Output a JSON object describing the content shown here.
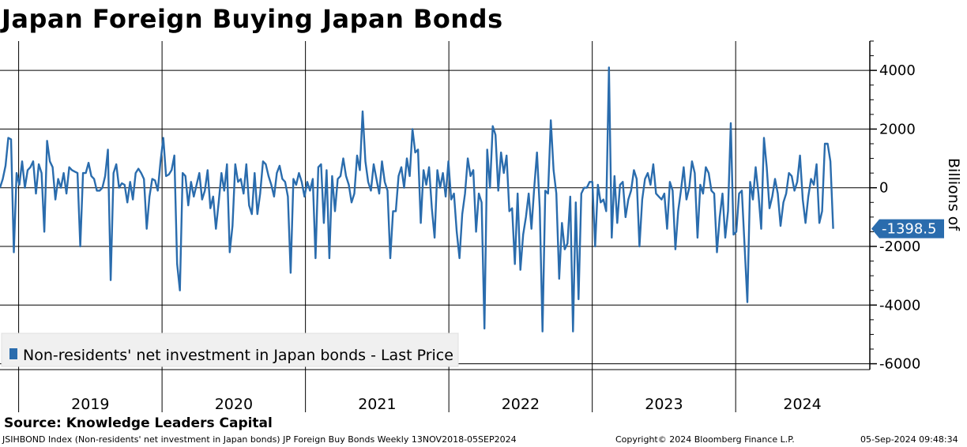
{
  "chart_data": {
    "type": "line",
    "title": "Japan Foreign Buying Japan Bonds",
    "ylabel": "Billions of",
    "ylim": [
      -6200,
      5000
    ],
    "yticks": [
      -6000,
      -4000,
      -2000,
      0,
      2000,
      4000
    ],
    "xlim": [
      2018.87,
      2024.93
    ],
    "x_periods": [
      "2019",
      "2020",
      "2021",
      "2022",
      "2023",
      "2024"
    ],
    "grid": true,
    "series": [
      {
        "name": "Non-residents' net investment in Japan bonds - Last Price",
        "color": "#2a6cad",
        "last_value_label": "-1398.5",
        "x_start": 2018.87,
        "x_end": 2024.68,
        "values": [
          0,
          300,
          750,
          1700,
          1650,
          -2200,
          500,
          100,
          900,
          0,
          600,
          700,
          900,
          -200,
          800,
          500,
          -1500,
          1600,
          900,
          700,
          -400,
          300,
          0,
          500,
          -200,
          700,
          600,
          550,
          500,
          -2000,
          500,
          500,
          850,
          400,
          300,
          -100,
          -100,
          0,
          400,
          1300,
          -3150,
          500,
          800,
          0,
          150,
          100,
          -500,
          200,
          -400,
          500,
          650,
          500,
          300,
          -1400,
          -300,
          300,
          250,
          -100,
          900,
          1700,
          400,
          450,
          600,
          1100,
          -2600,
          -3500,
          500,
          400,
          -600,
          200,
          -300,
          100,
          500,
          -400,
          -100,
          600,
          -700,
          -300,
          -1400,
          -500,
          500,
          -100,
          800,
          -2200,
          -1300,
          800,
          200,
          300,
          -200,
          800,
          -600,
          -900,
          500,
          -900,
          -200,
          900,
          800,
          400,
          100,
          -300,
          500,
          750,
          300,
          200,
          -300,
          -2900,
          300,
          100,
          500,
          200,
          -300,
          200,
          -100,
          300,
          -2400,
          700,
          800,
          -1200,
          600,
          -2400,
          400,
          -800,
          300,
          400,
          1000,
          400,
          100,
          -500,
          -200,
          1100,
          600,
          2600,
          900,
          200,
          -100,
          800,
          300,
          -200,
          900,
          200,
          -100,
          -2400,
          -800,
          -800,
          400,
          700,
          0,
          1000,
          400,
          2000,
          1200,
          1300,
          -1200,
          600,
          100,
          700,
          -700,
          -1700,
          600,
          0,
          500,
          -300,
          900,
          -400,
          -200,
          -1500,
          -2400,
          -900,
          -200,
          1000,
          400,
          600,
          -1500,
          -200,
          -500,
          -4800,
          1300,
          0,
          2100,
          1800,
          -100,
          1200,
          500,
          1100,
          -800,
          -700,
          -2600,
          -200,
          -2800,
          -1600,
          -1000,
          -200,
          -1400,
          0,
          1200,
          -700,
          -4900,
          -100,
          -200,
          2300,
          600,
          -200,
          -3100,
          -1200,
          -2100,
          -1900,
          -300,
          -4900,
          -500,
          -3800,
          -200,
          0,
          0,
          200,
          200,
          -2000,
          100,
          -500,
          -400,
          -800,
          4100,
          -1700,
          400,
          -1200,
          100,
          200,
          -1000,
          -400,
          -100,
          600,
          300,
          -2000,
          -400,
          300,
          500,
          100,
          800,
          -200,
          -300,
          -400,
          -200,
          -1400,
          200,
          -100,
          -2100,
          -800,
          -100,
          700,
          -400,
          0,
          900,
          500,
          -1700,
          100,
          -200,
          700,
          500,
          -100,
          -200,
          -2200,
          -1000,
          -200,
          -1700,
          -800,
          2200,
          -1600,
          -1500,
          -200,
          -100,
          -2000,
          -3900,
          200,
          -400,
          700,
          -200,
          -1400,
          1700,
          700,
          -700,
          -300,
          300,
          -200,
          -1300,
          -500,
          -200,
          500,
          400,
          -100,
          200,
          1100,
          -400,
          -1200,
          -300,
          300,
          100,
          800,
          -1200,
          -800,
          1500,
          1500,
          900,
          -1398.5
        ]
      }
    ]
  },
  "source": "Source:  Knowledge Leaders Capital",
  "footer": {
    "left": "JSIHBOND Index (Non-residents' net investment in Japan bonds) JP Foreign Buy Bonds  Weekly 13NOV2018-05SEP2024",
    "center": "Copyright© 2024 Bloomberg Finance L.P.",
    "right": "05-Sep-2024 09:48:34"
  }
}
